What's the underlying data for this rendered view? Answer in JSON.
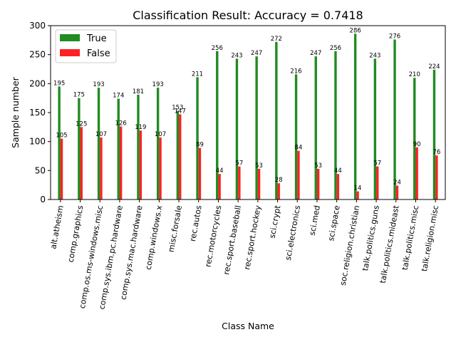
{
  "chart_data": {
    "type": "bar",
    "title": "Classification Result: Accuracy = 0.7418",
    "xlabel": "Class Name",
    "ylabel": "Sample number",
    "ylim": [
      0,
      300
    ],
    "yticks": [
      0,
      50,
      100,
      150,
      200,
      250,
      300
    ],
    "grid": false,
    "legend_position": "top-left",
    "categories": [
      "alt.atheism",
      "comp.graphics",
      "comp.os.ms-windows.misc",
      "comp.sys.ibm.pc.hardware",
      "comp.sys.mac.hardware",
      "comp.windows.x",
      "misc.forsale",
      "rec.autos",
      "rec.motorcycles",
      "rec.sport.baseball",
      "rec.sport.hockey",
      "sci.crypt",
      "sci.electronics",
      "sci.med",
      "sci.space",
      "soc.religion.christian",
      "talk.politics.guns",
      "talk.politics.mideast",
      "talk.politics.misc",
      "talk.religion.misc"
    ],
    "series": [
      {
        "name": "True",
        "color": "#228B22",
        "values": [
          195,
          175,
          193,
          174,
          181,
          193,
          153,
          211,
          256,
          243,
          247,
          272,
          216,
          247,
          256,
          286,
          243,
          276,
          210,
          224
        ]
      },
      {
        "name": "False",
        "color": "#FF2222",
        "values": [
          105,
          125,
          107,
          126,
          119,
          107,
          147,
          89,
          44,
          57,
          53,
          28,
          84,
          53,
          44,
          14,
          57,
          24,
          90,
          76
        ]
      }
    ]
  }
}
